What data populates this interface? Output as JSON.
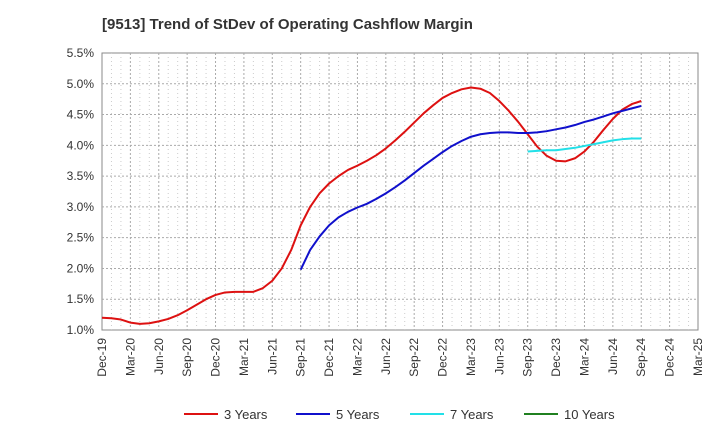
{
  "chart_data": {
    "type": "line",
    "title": "[9513]  Trend of StDev of Operating Cashflow Margin",
    "xlabel": "",
    "ylabel": "",
    "x_ticks": [
      "Dec-19",
      "Mar-20",
      "Jun-20",
      "Sep-20",
      "Dec-20",
      "Mar-21",
      "Jun-21",
      "Sep-21",
      "Dec-21",
      "Mar-22",
      "Jun-22",
      "Sep-22",
      "Dec-22",
      "Mar-23",
      "Jun-23",
      "Sep-23",
      "Dec-23",
      "Mar-24",
      "Jun-24",
      "Sep-24",
      "Dec-24",
      "Mar-25"
    ],
    "y_ticks": [
      "1.0%",
      "1.5%",
      "2.0%",
      "2.5%",
      "3.0%",
      "3.5%",
      "4.0%",
      "4.5%",
      "5.0%",
      "5.5%"
    ],
    "ylim": [
      1.0,
      5.5
    ],
    "grid": true,
    "legend_position": "bottom",
    "series": [
      {
        "name": "3 Years",
        "color": "#dd1111",
        "points": [
          [
            "Dec-19",
            1.2
          ],
          [
            "Jan-20",
            1.19
          ],
          [
            "Feb-20",
            1.17
          ],
          [
            "Mar-20",
            1.12
          ],
          [
            "Apr-20",
            1.1
          ],
          [
            "May-20",
            1.11
          ],
          [
            "Jun-20",
            1.14
          ],
          [
            "Jul-20",
            1.18
          ],
          [
            "Aug-20",
            1.24
          ],
          [
            "Sep-20",
            1.32
          ],
          [
            "Oct-20",
            1.41
          ],
          [
            "Nov-20",
            1.5
          ],
          [
            "Dec-20",
            1.57
          ],
          [
            "Jan-21",
            1.61
          ],
          [
            "Feb-21",
            1.62
          ],
          [
            "Mar-21",
            1.62
          ],
          [
            "Apr-21",
            1.62
          ],
          [
            "May-21",
            1.68
          ],
          [
            "Jun-21",
            1.8
          ],
          [
            "Jul-21",
            2.0
          ],
          [
            "Aug-21",
            2.3
          ],
          [
            "Sep-21",
            2.7
          ],
          [
            "Oct-21",
            3.0
          ],
          [
            "Nov-21",
            3.22
          ],
          [
            "Dec-21",
            3.38
          ],
          [
            "Jan-22",
            3.5
          ],
          [
            "Feb-22",
            3.6
          ],
          [
            "Mar-22",
            3.67
          ],
          [
            "Apr-22",
            3.75
          ],
          [
            "May-22",
            3.84
          ],
          [
            "Jun-22",
            3.95
          ],
          [
            "Jul-22",
            4.08
          ],
          [
            "Aug-22",
            4.22
          ],
          [
            "Sep-22",
            4.37
          ],
          [
            "Oct-22",
            4.52
          ],
          [
            "Nov-22",
            4.65
          ],
          [
            "Dec-22",
            4.77
          ],
          [
            "Jan-23",
            4.85
          ],
          [
            "Feb-23",
            4.91
          ],
          [
            "Mar-23",
            4.94
          ],
          [
            "Apr-23",
            4.92
          ],
          [
            "May-23",
            4.85
          ],
          [
            "Jun-23",
            4.72
          ],
          [
            "Jul-23",
            4.56
          ],
          [
            "Aug-23",
            4.38
          ],
          [
            "Sep-23",
            4.18
          ],
          [
            "Oct-23",
            3.98
          ],
          [
            "Nov-23",
            3.83
          ],
          [
            "Dec-23",
            3.75
          ],
          [
            "Jan-24",
            3.74
          ],
          [
            "Feb-24",
            3.79
          ],
          [
            "Mar-24",
            3.9
          ],
          [
            "Apr-24",
            4.06
          ],
          [
            "May-24",
            4.25
          ],
          [
            "Jun-24",
            4.43
          ],
          [
            "Jul-24",
            4.58
          ],
          [
            "Aug-24",
            4.67
          ],
          [
            "Sep-24",
            4.72
          ]
        ]
      },
      {
        "name": "5 Years",
        "color": "#1010cc",
        "points": [
          [
            "Sep-21",
            1.98
          ],
          [
            "Oct-21",
            2.3
          ],
          [
            "Nov-21",
            2.52
          ],
          [
            "Dec-21",
            2.7
          ],
          [
            "Jan-22",
            2.83
          ],
          [
            "Feb-22",
            2.92
          ],
          [
            "Mar-22",
            2.99
          ],
          [
            "Apr-22",
            3.05
          ],
          [
            "May-22",
            3.13
          ],
          [
            "Jun-22",
            3.22
          ],
          [
            "Jul-22",
            3.32
          ],
          [
            "Aug-22",
            3.43
          ],
          [
            "Sep-22",
            3.55
          ],
          [
            "Oct-22",
            3.67
          ],
          [
            "Nov-22",
            3.78
          ],
          [
            "Dec-22",
            3.89
          ],
          [
            "Jan-23",
            3.99
          ],
          [
            "Feb-23",
            4.07
          ],
          [
            "Mar-23",
            4.14
          ],
          [
            "Apr-23",
            4.18
          ],
          [
            "May-23",
            4.2
          ],
          [
            "Jun-23",
            4.21
          ],
          [
            "Jul-23",
            4.21
          ],
          [
            "Aug-23",
            4.2
          ],
          [
            "Sep-23",
            4.2
          ],
          [
            "Oct-23",
            4.21
          ],
          [
            "Nov-23",
            4.23
          ],
          [
            "Dec-23",
            4.26
          ],
          [
            "Jan-24",
            4.29
          ],
          [
            "Feb-24",
            4.33
          ],
          [
            "Mar-24",
            4.38
          ],
          [
            "Apr-24",
            4.42
          ],
          [
            "May-24",
            4.47
          ],
          [
            "Jun-24",
            4.52
          ],
          [
            "Jul-24",
            4.56
          ],
          [
            "Aug-24",
            4.6
          ],
          [
            "Sep-24",
            4.64
          ]
        ]
      },
      {
        "name": "7 Years",
        "color": "#22e0e8",
        "points": [
          [
            "Sep-23",
            3.9
          ],
          [
            "Oct-23",
            3.91
          ],
          [
            "Nov-23",
            3.92
          ],
          [
            "Dec-23",
            3.92
          ],
          [
            "Jan-24",
            3.94
          ],
          [
            "Feb-24",
            3.96
          ],
          [
            "Mar-24",
            3.99
          ],
          [
            "Apr-24",
            4.02
          ],
          [
            "May-24",
            4.05
          ],
          [
            "Jun-24",
            4.08
          ],
          [
            "Jul-24",
            4.1
          ],
          [
            "Aug-24",
            4.11
          ],
          [
            "Sep-24",
            4.11
          ]
        ]
      },
      {
        "name": "10 Years",
        "color": "#208020",
        "points": []
      }
    ]
  }
}
